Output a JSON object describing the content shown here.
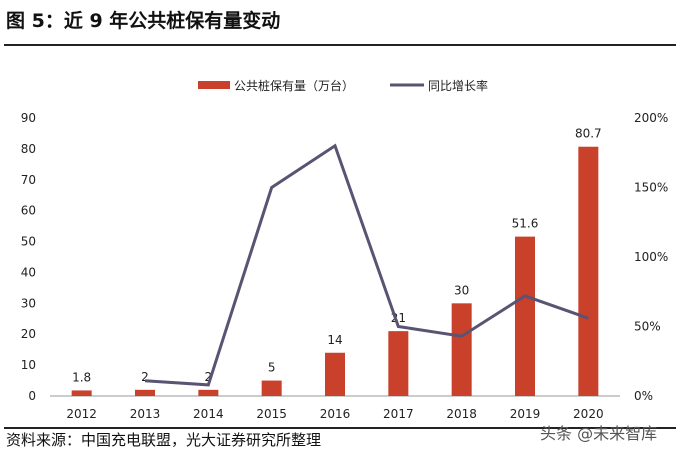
{
  "title": "图 5：近 9 年公共桩保有量变动",
  "source": "资料来源：中国充电联盟，光大证券研究所整理",
  "watermark": "头条 @未来智库",
  "chart_data": {
    "type": "bar+line",
    "categories": [
      "2012",
      "2013",
      "2014",
      "2015",
      "2016",
      "2017",
      "2018",
      "2019",
      "2020"
    ],
    "series": [
      {
        "name": "公共桩保有量（万台）",
        "type": "bar",
        "axis": "left",
        "color": "#C9412A",
        "values": [
          1.8,
          2,
          2,
          5,
          14,
          21,
          30,
          51.6,
          80.7
        ],
        "labels": [
          "1.8",
          "2",
          "2",
          "5",
          "14",
          "21",
          "30",
          "51.6",
          "80.7"
        ]
      },
      {
        "name": "同比增长率",
        "type": "line",
        "axis": "right",
        "color": "#5A5372",
        "values": [
          null,
          11,
          8,
          150,
          180,
          50,
          43,
          72,
          56
        ]
      }
    ],
    "left_axis": {
      "ylim": [
        0,
        90
      ],
      "ticks": [
        "0",
        "10",
        "20",
        "30",
        "40",
        "50",
        "60",
        "70",
        "80",
        "90"
      ]
    },
    "right_axis": {
      "ylim": [
        0,
        200
      ],
      "ticks": [
        "0%",
        "50%",
        "100%",
        "150%",
        "200%"
      ]
    },
    "legend": "top",
    "grid": false
  }
}
